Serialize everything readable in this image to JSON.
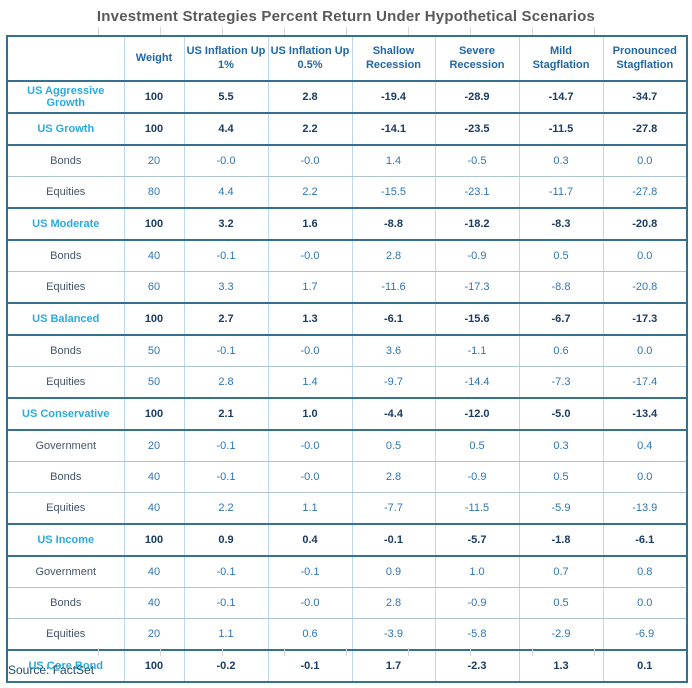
{
  "colors": {
    "title_gray": "#595959",
    "strategy_label_cyan": "#29ABE2",
    "strategy_value_navy": "#1A3C63",
    "component_value_blue": "#2E75B6",
    "component_label_slate": "#44546A",
    "header_blue": "#1F67A7",
    "thick_border_steel": "#35708F",
    "light_border_blue": "#BDD7EE",
    "source_teal": "#1D4E66"
  },
  "chart_data": {
    "type": "table",
    "title": "Investment Strategies Percent Return Under Hypothetical Scenarios",
    "source": "Source: FactSet",
    "columns": [
      "",
      "Weight",
      "US Inflation Up 1%",
      "US Inflation Up 0.5%",
      "Shallow Recession",
      "Severe Recession",
      "Mild Stagflation",
      "Pronounced Stagflation"
    ],
    "rows": [
      {
        "kind": "strategy",
        "label": "US Aggressive Growth",
        "weight": "100",
        "values": [
          "5.5",
          "2.8",
          "-19.4",
          "-28.9",
          "-14.7",
          "-34.7"
        ]
      },
      {
        "kind": "strategy",
        "label": "US Growth",
        "weight": "100",
        "values": [
          "4.4",
          "2.2",
          "-14.1",
          "-23.5",
          "-11.5",
          "-27.8"
        ]
      },
      {
        "kind": "component",
        "label": "Bonds",
        "weight": "20",
        "values": [
          "-0.0",
          "-0.0",
          "1.4",
          "-0.5",
          "0.3",
          "0.0"
        ]
      },
      {
        "kind": "component",
        "label": "Equities",
        "weight": "80",
        "values": [
          "4.4",
          "2.2",
          "-15.5",
          "-23.1",
          "-11.7",
          "-27.8"
        ]
      },
      {
        "kind": "strategy",
        "label": "US Moderate",
        "weight": "100",
        "values": [
          "3.2",
          "1.6",
          "-8.8",
          "-18.2",
          "-8.3",
          "-20.8"
        ]
      },
      {
        "kind": "component",
        "label": "Bonds",
        "weight": "40",
        "values": [
          "-0.1",
          "-0.0",
          "2.8",
          "-0.9",
          "0.5",
          "0.0"
        ]
      },
      {
        "kind": "component",
        "label": "Equities",
        "weight": "60",
        "values": [
          "3.3",
          "1.7",
          "-11.6",
          "-17.3",
          "-8.8",
          "-20.8"
        ]
      },
      {
        "kind": "strategy",
        "label": "US Balanced",
        "weight": "100",
        "values": [
          "2.7",
          "1.3",
          "-6.1",
          "-15.6",
          "-6.7",
          "-17.3"
        ]
      },
      {
        "kind": "component",
        "label": "Bonds",
        "weight": "50",
        "values": [
          "-0.1",
          "-0.0",
          "3.6",
          "-1.1",
          "0.6",
          "0.0"
        ]
      },
      {
        "kind": "component",
        "label": "Equities",
        "weight": "50",
        "values": [
          "2.8",
          "1.4",
          "-9.7",
          "-14.4",
          "-7.3",
          "-17.4"
        ]
      },
      {
        "kind": "strategy",
        "label": "US Conservative",
        "weight": "100",
        "values": [
          "2.1",
          "1.0",
          "-4.4",
          "-12.0",
          "-5.0",
          "-13.4"
        ]
      },
      {
        "kind": "component",
        "label": "Government",
        "weight": "20",
        "values": [
          "-0.1",
          "-0.0",
          "0.5",
          "0.5",
          "0.3",
          "0.4"
        ]
      },
      {
        "kind": "component",
        "label": "Bonds",
        "weight": "40",
        "values": [
          "-0.1",
          "-0.0",
          "2.8",
          "-0.9",
          "0.5",
          "0.0"
        ]
      },
      {
        "kind": "component",
        "label": "Equities",
        "weight": "40",
        "values": [
          "2.2",
          "1.1",
          "-7.7",
          "-11.5",
          "-5.9",
          "-13.9"
        ]
      },
      {
        "kind": "strategy",
        "label": "US Income",
        "weight": "100",
        "values": [
          "0.9",
          "0.4",
          "-0.1",
          "-5.7",
          "-1.8",
          "-6.1"
        ]
      },
      {
        "kind": "component",
        "label": "Government",
        "weight": "40",
        "values": [
          "-0.1",
          "-0.1",
          "0.9",
          "1.0",
          "0.7",
          "0.8"
        ]
      },
      {
        "kind": "component",
        "label": "Bonds",
        "weight": "40",
        "values": [
          "-0.1",
          "-0.0",
          "2.8",
          "-0.9",
          "0.5",
          "0.0"
        ]
      },
      {
        "kind": "component",
        "label": "Equities",
        "weight": "20",
        "values": [
          "1.1",
          "0.6",
          "-3.9",
          "-5.8",
          "-2.9",
          "-6.9"
        ]
      },
      {
        "kind": "strategy",
        "label": "US Core Bond",
        "weight": "100",
        "values": [
          "-0.2",
          "-0.1",
          "1.7",
          "-2.3",
          "1.3",
          "0.1"
        ]
      }
    ]
  }
}
